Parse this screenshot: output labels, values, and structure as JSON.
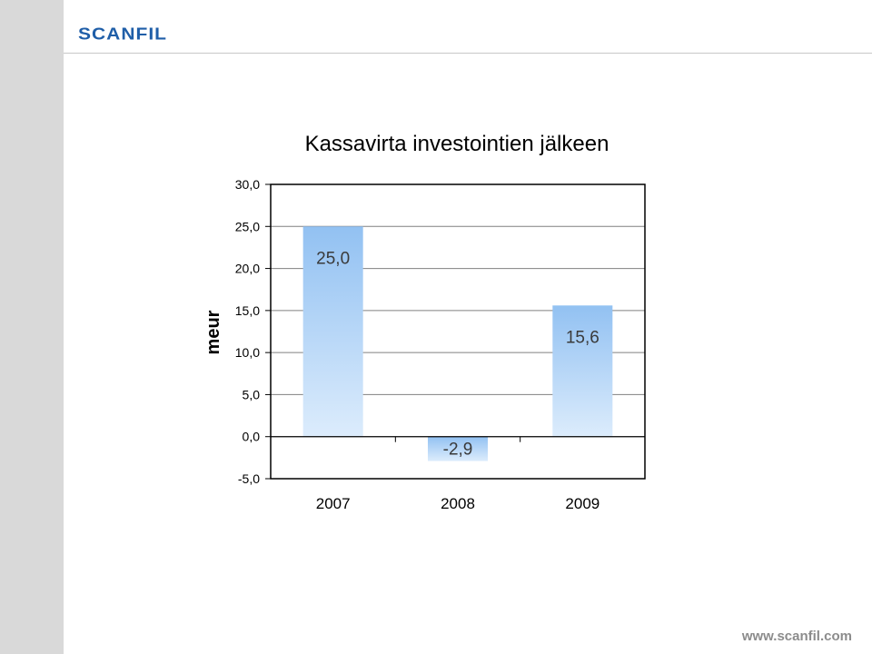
{
  "branding": {
    "logo_text": "SCANFIL",
    "website": "www.scanfil.com"
  },
  "colors": {
    "logo": "#1f5ea8",
    "bar_top": "#92c1f2",
    "bar_bottom": "#dcecfc",
    "side_band": "#d9d9d9"
  },
  "chart_data": {
    "type": "bar",
    "title": "Kassavirta investointien jälkeen",
    "ylabel": "meur",
    "xlabel": "",
    "categories": [
      "2007",
      "2008",
      "2009"
    ],
    "values": [
      25.0,
      -2.9,
      15.6
    ],
    "data_labels": [
      "25,0",
      "-2,9",
      "15,6"
    ],
    "ylim": [
      -5,
      30
    ],
    "yticks": [
      30,
      25,
      20,
      15,
      10,
      5,
      0,
      -5
    ],
    "ytick_labels": [
      "30,0",
      "25,0",
      "20,0",
      "15,0",
      "10,0",
      "5,0",
      "0,0",
      "-5,0"
    ],
    "grid": true,
    "legend": "none"
  }
}
